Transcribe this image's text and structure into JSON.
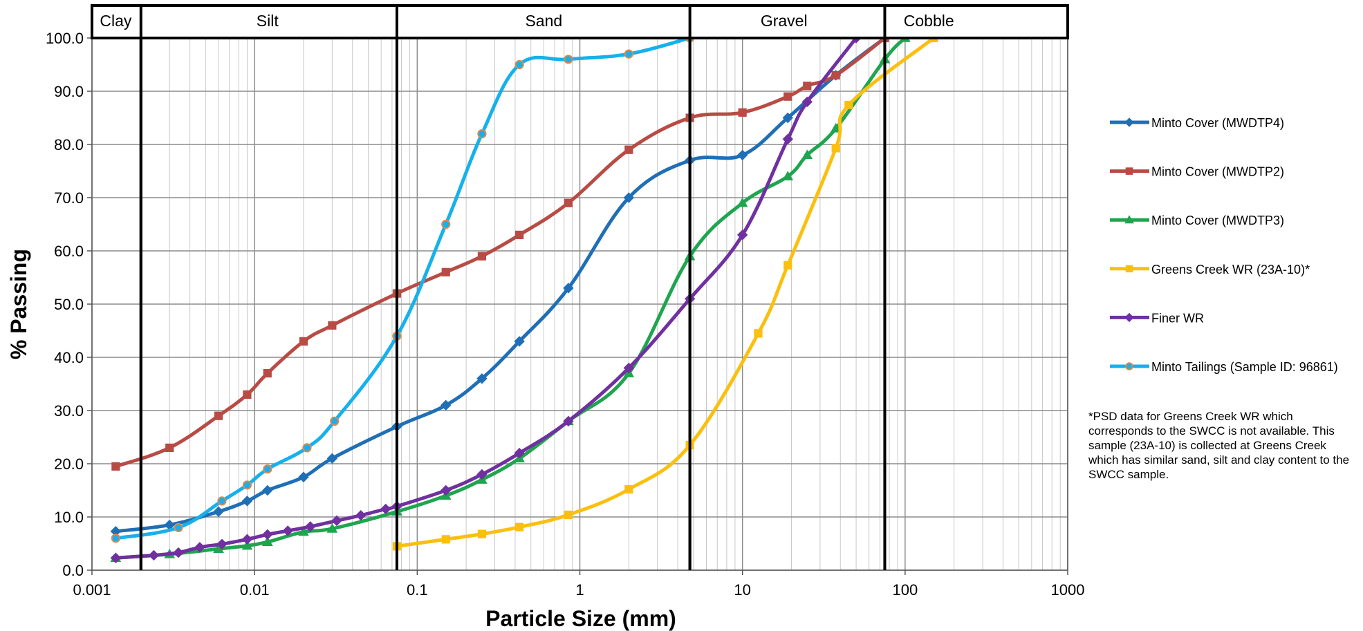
{
  "chart_data": {
    "type": "line",
    "x_scale": "log",
    "xlim": [
      0.001,
      1000
    ],
    "ylim": [
      0,
      100
    ],
    "xlabel": "Particle Size (mm)",
    "ylabel": "% Passing",
    "x_ticks": [
      "0.001",
      "0.01",
      "0.1",
      "1",
      "10",
      "100",
      "1000"
    ],
    "y_ticks": [
      "0.0",
      "10.0",
      "20.0",
      "30.0",
      "40.0",
      "50.0",
      "60.0",
      "70.0",
      "80.0",
      "90.0",
      "100.0"
    ],
    "grid": true,
    "legend_position": "right",
    "boundaries": [
      0.002,
      0.075,
      4.75,
      75
    ],
    "band_labels": [
      {
        "label": "Clay",
        "x": 0.0014
      },
      {
        "label": "Silt",
        "x": 0.012
      },
      {
        "label": "Sand",
        "x": 0.6
      },
      {
        "label": "Gravel",
        "x": 18
      },
      {
        "label": "Cobble",
        "x": 140
      }
    ],
    "series": [
      {
        "name": "Minto Cover (MWDTP4)",
        "color": "#1f6fb6",
        "marker": "diamond",
        "points": [
          [
            0.0014,
            7.3
          ],
          [
            0.003,
            8.5
          ],
          [
            0.006,
            11
          ],
          [
            0.009,
            13
          ],
          [
            0.012,
            15
          ],
          [
            0.02,
            17.5
          ],
          [
            0.03,
            21
          ],
          [
            0.075,
            27
          ],
          [
            0.15,
            31
          ],
          [
            0.25,
            36
          ],
          [
            0.425,
            43
          ],
          [
            0.85,
            53
          ],
          [
            2,
            70
          ],
          [
            4.75,
            77
          ],
          [
            10,
            78
          ],
          [
            19,
            85
          ],
          [
            37.5,
            93
          ],
          [
            75,
            100
          ]
        ]
      },
      {
        "name": "Minto Cover (MWDTP2)",
        "color": "#b84b44",
        "marker": "square",
        "points": [
          [
            0.0014,
            19.5
          ],
          [
            0.003,
            23
          ],
          [
            0.006,
            29
          ],
          [
            0.009,
            33
          ],
          [
            0.012,
            37
          ],
          [
            0.02,
            43
          ],
          [
            0.03,
            46
          ],
          [
            0.075,
            52
          ],
          [
            0.15,
            56
          ],
          [
            0.25,
            59
          ],
          [
            0.425,
            63
          ],
          [
            0.85,
            69
          ],
          [
            2,
            79
          ],
          [
            4.75,
            85
          ],
          [
            10,
            86
          ],
          [
            19,
            89
          ],
          [
            25,
            91
          ],
          [
            37.5,
            93
          ],
          [
            75,
            100
          ]
        ]
      },
      {
        "name": "Minto Cover (MWDTP3)",
        "color": "#1fa54f",
        "marker": "triangle",
        "points": [
          [
            0.0014,
            2.3
          ],
          [
            0.003,
            3
          ],
          [
            0.006,
            4
          ],
          [
            0.009,
            4.6
          ],
          [
            0.012,
            5.3
          ],
          [
            0.02,
            7.2
          ],
          [
            0.03,
            7.8
          ],
          [
            0.075,
            11
          ],
          [
            0.15,
            14
          ],
          [
            0.25,
            17
          ],
          [
            0.425,
            21
          ],
          [
            0.85,
            28
          ],
          [
            2,
            37
          ],
          [
            4.75,
            59
          ],
          [
            10,
            69
          ],
          [
            19,
            74
          ],
          [
            25,
            78
          ],
          [
            37.5,
            83
          ],
          [
            75,
            96
          ],
          [
            100,
            100
          ]
        ]
      },
      {
        "name": "Greens Creek WR (23A-10)*",
        "color": "#fbbf0f",
        "marker": "square",
        "points": [
          [
            0.075,
            4.5
          ],
          [
            0.15,
            5.8
          ],
          [
            0.25,
            6.8
          ],
          [
            0.425,
            8.1
          ],
          [
            0.85,
            10.4
          ],
          [
            2,
            15.2
          ],
          [
            4.75,
            23.5
          ],
          [
            12.5,
            44.5
          ],
          [
            19,
            57.3
          ],
          [
            37.5,
            79.3
          ],
          [
            45,
            87.4
          ],
          [
            150,
            100
          ]
        ]
      },
      {
        "name": "Finer WR",
        "color": "#7030a0",
        "marker": "diamond",
        "points": [
          [
            0.0014,
            2.3
          ],
          [
            0.0024,
            2.8
          ],
          [
            0.0034,
            3.3
          ],
          [
            0.0046,
            4.3
          ],
          [
            0.0063,
            4.9
          ],
          [
            0.009,
            5.8
          ],
          [
            0.012,
            6.7
          ],
          [
            0.016,
            7.4
          ],
          [
            0.022,
            8.2
          ],
          [
            0.032,
            9.3
          ],
          [
            0.045,
            10.3
          ],
          [
            0.064,
            11.5
          ],
          [
            0.075,
            12
          ],
          [
            0.15,
            15
          ],
          [
            0.25,
            18
          ],
          [
            0.425,
            22
          ],
          [
            0.85,
            28
          ],
          [
            2,
            38
          ],
          [
            4.75,
            51
          ],
          [
            10,
            63
          ],
          [
            19,
            81
          ],
          [
            25,
            88
          ],
          [
            50,
            100
          ]
        ]
      },
      {
        "name": "Minto Tailings (Sample ID: 96861)",
        "color": "#16b1ec",
        "marker": "circle",
        "points": [
          [
            0.0014,
            6
          ],
          [
            0.0034,
            8
          ],
          [
            0.0063,
            13
          ],
          [
            0.009,
            16
          ],
          [
            0.012,
            19
          ],
          [
            0.021,
            23
          ],
          [
            0.031,
            28
          ],
          [
            0.075,
            44
          ],
          [
            0.15,
            65
          ],
          [
            0.25,
            82
          ],
          [
            0.425,
            95
          ],
          [
            0.85,
            96
          ],
          [
            2,
            97
          ],
          [
            4.75,
            100
          ]
        ]
      }
    ]
  },
  "footnote": "*PSD data for Greens Creek WR  which corresponds to the SWCC is not available. This  sample (23A-10) is collected at Greens Creek which has similar sand, silt and clay content to the SWCC sample."
}
